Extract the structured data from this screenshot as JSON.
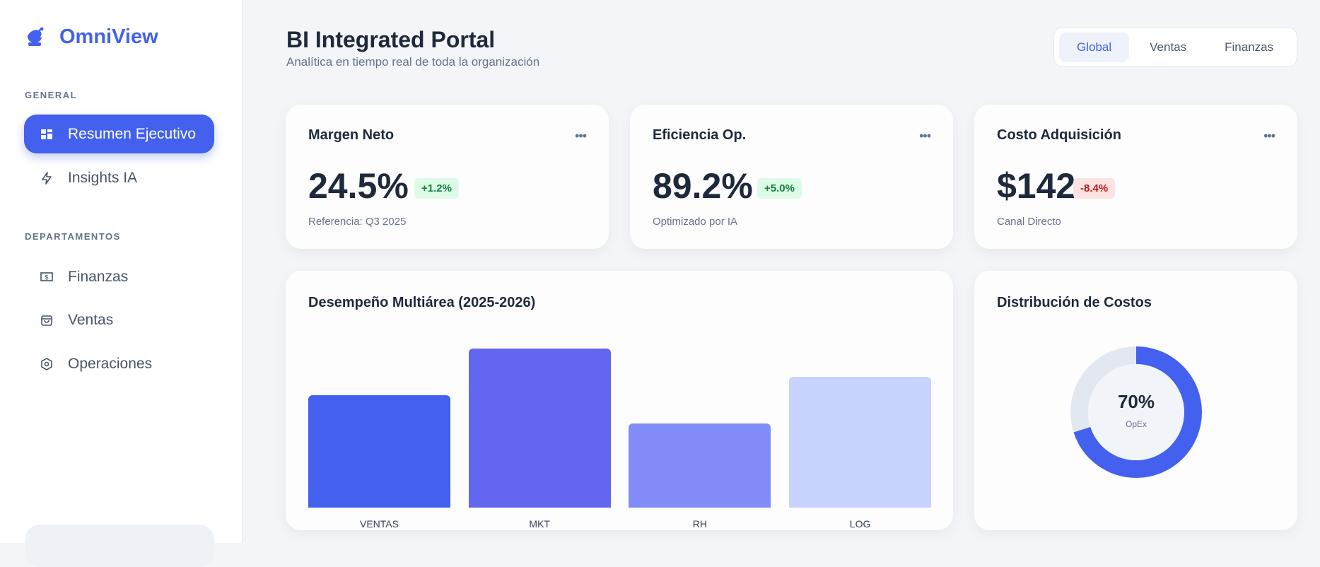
{
  "brand": {
    "name": "OmniView",
    "color": "#4361ee",
    "icon": "satellite-dish-icon"
  },
  "sidebar": {
    "sections": [
      {
        "label": "GENERAL",
        "items": [
          {
            "label": "Resumen Ejecutivo",
            "icon": "dashboard-icon",
            "active": true
          },
          {
            "label": "Insights IA",
            "icon": "lightning-icon"
          }
        ]
      },
      {
        "label": "DEPARTAMENTOS",
        "items": [
          {
            "label": "Finanzas",
            "icon": "money-icon"
          },
          {
            "label": "Ventas",
            "icon": "shopping-bag-icon"
          },
          {
            "label": "Operaciones",
            "icon": "hexagon-gear-icon"
          }
        ]
      }
    ]
  },
  "header": {
    "title": "BI Integrated Portal",
    "subtitle": "Analítica en tiempo real de toda la organización",
    "tabs": [
      {
        "label": "Global",
        "active": true
      },
      {
        "label": "Ventas"
      },
      {
        "label": "Finanzas"
      }
    ]
  },
  "kpis": [
    {
      "title": "Margen Neto",
      "value": "24.5%",
      "delta": "+1.2%",
      "trend": "up",
      "note": "Referencia: Q3 2025"
    },
    {
      "title": "Eficiencia Op.",
      "value": "89.2%",
      "delta": "+5.0%",
      "trend": "up",
      "note": "Optimizado por IA"
    },
    {
      "title": "Costo Adquisición",
      "value": "$142",
      "delta": "-8.4%",
      "trend": "down",
      "note": "Canal Directo"
    }
  ],
  "colors": {
    "up_bg": "#dcfce7",
    "up_fg": "#15803d",
    "down_bg": "#fee2e2",
    "down_fg": "#b91c1c"
  },
  "chart_data": [
    {
      "type": "bar",
      "title": "Desempeño Multiárea (2025-2026)",
      "categories": [
        "VENTAS",
        "MKT",
        "RH",
        "LOG"
      ],
      "values": [
        60,
        85,
        45,
        70
      ],
      "colors": [
        "#4361ee",
        "#6366f1",
        "#818cf8",
        "#c7d2fe"
      ],
      "ylim": [
        0,
        100
      ],
      "grid": false
    },
    {
      "type": "pie",
      "title": "Distribución de Costos",
      "center_value": "70%",
      "center_label": "OpEx",
      "values": [
        70,
        30
      ],
      "colors": [
        "#4361ee",
        "#e2e8f0"
      ]
    }
  ]
}
